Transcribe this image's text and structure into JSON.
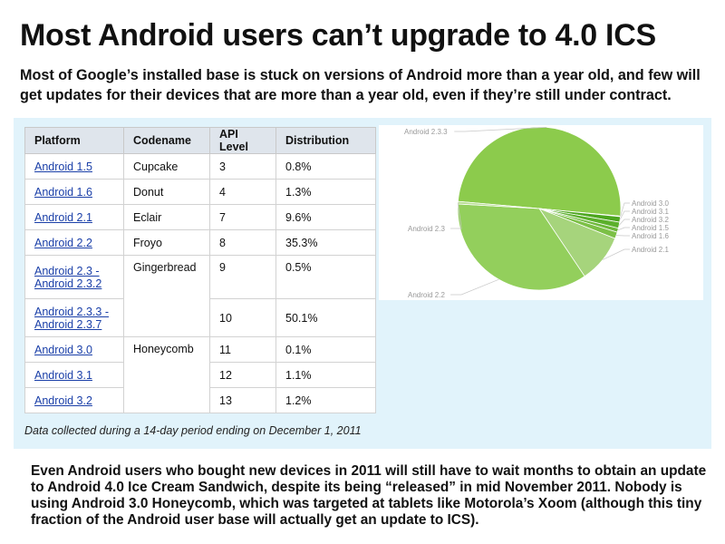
{
  "title": "Most Android users can’t upgrade to 4.0 ICS",
  "subtitle": "Most of Google’s installed base is stuck on versions of Android more than a year old, and few will get updates for their devices that are more than a year old, even if they’re still under contract.",
  "table": {
    "headers": [
      "Platform",
      "Codename",
      "API Level",
      "Distribution"
    ],
    "rows": [
      {
        "platform": "Android 1.5",
        "codename": "Cupcake",
        "api": "3",
        "distribution": "0.8%"
      },
      {
        "platform": "Android 1.6",
        "codename": "Donut",
        "api": "4",
        "distribution": "1.3%"
      },
      {
        "platform": "Android 2.1",
        "codename": "Eclair",
        "api": "7",
        "distribution": "9.6%"
      },
      {
        "platform": "Android 2.2",
        "codename": "Froyo",
        "api": "8",
        "distribution": "35.3%"
      },
      {
        "platform": "Android 2.3 - Android 2.3.2",
        "codename": "Gingerbread",
        "api": "9",
        "distribution": "0.5%"
      },
      {
        "platform": "Android 2.3.3 - Android 2.3.7",
        "codename": "",
        "api": "10",
        "distribution": "50.1%"
      },
      {
        "platform": "Android 3.0",
        "codename": "Honeycomb",
        "api": "11",
        "distribution": "0.1%"
      },
      {
        "platform": "Android 3.1",
        "codename": "",
        "api": "12",
        "distribution": "1.1%"
      },
      {
        "platform": "Android 3.2",
        "codename": "",
        "api": "13",
        "distribution": "1.2%"
      }
    ],
    "footnote": "Data collected during a 14-day period ending on December 1, 2011"
  },
  "body_text": "Even Android users who bought new devices in 2011 will still have to wait months to obtain an update to Android 4.0 Ice Cream Sandwich, despite its being “released” in mid November 2011. Nobody is using Android 3.0 Honeycomb, which was targeted at tablets like Motorola’s Xoom (although this tiny fraction of the Android user base will actually get an update to ICS).",
  "colors": {
    "panel": "#e1f3fb",
    "header": "#dfe5ec",
    "link": "#1a3fa8"
  },
  "chart_data": {
    "type": "pie",
    "title": "",
    "slices": [
      {
        "label": "Android 2.3.3",
        "value": 50.1,
        "color": "#8ccb4c"
      },
      {
        "label": "Android 3.0",
        "value": 0.1,
        "color": "#3c9a14"
      },
      {
        "label": "Android 3.1",
        "value": 1.1,
        "color": "#4ca61f"
      },
      {
        "label": "Android 3.2",
        "value": 1.2,
        "color": "#5cb02c"
      },
      {
        "label": "Android 1.5",
        "value": 0.8,
        "color": "#6db83a"
      },
      {
        "label": "Android 1.6",
        "value": 1.3,
        "color": "#7cc046"
      },
      {
        "label": "Android 2.1",
        "value": 9.6,
        "color": "#a6d47c"
      },
      {
        "label": "Android 2.2",
        "value": 35.3,
        "color": "#93cf5c"
      },
      {
        "label": "Android 2.3",
        "value": 0.5,
        "color": "#b8de93"
      }
    ]
  }
}
